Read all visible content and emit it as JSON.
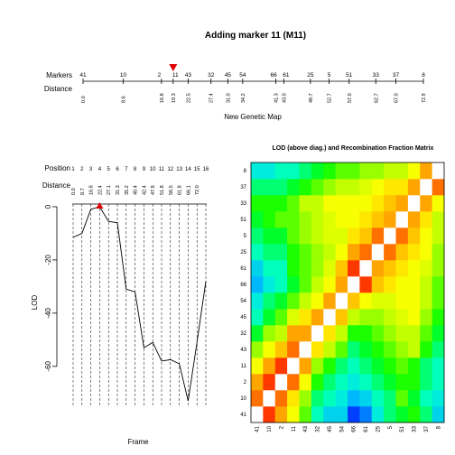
{
  "chart_data": [
    {
      "type": "line",
      "title": "Adding marker 11 (M11)",
      "row_labels": [
        "Markers",
        "Distance"
      ],
      "xlabel": "New Genetic Map",
      "markers": [
        {
          "name": "41",
          "cm": 0.0,
          "label": "0.0"
        },
        {
          "name": "10",
          "cm": 8.6,
          "label": "8.6"
        },
        {
          "name": "2",
          "cm": 16.8,
          "label": "16.8"
        },
        {
          "name": "11",
          "cm": 19.3,
          "label": "19.3"
        },
        {
          "name": "43",
          "cm": 22.5,
          "label": "22.5"
        },
        {
          "name": "32",
          "cm": 27.4,
          "label": "27.4"
        },
        {
          "name": "45",
          "cm": 31.0,
          "label": "31.0"
        },
        {
          "name": "54",
          "cm": 34.2,
          "label": "34.2"
        },
        {
          "name": "66",
          "cm": 41.3,
          "label": "41.3"
        },
        {
          "name": "61",
          "cm": 43.0,
          "label": "43.0"
        },
        {
          "name": "25",
          "cm": 48.7,
          "label": "48.7"
        },
        {
          "name": "5",
          "cm": 52.7,
          "label": "52.7"
        },
        {
          "name": "51",
          "cm": 57.0,
          "label": "57.0"
        },
        {
          "name": "33",
          "cm": 62.7,
          "label": "62.7"
        },
        {
          "name": "37",
          "cm": 67.0,
          "label": "67.0"
        },
        {
          "name": "8",
          "cm": 72.9,
          "label": "72.9"
        }
      ],
      "added_marker": "11",
      "highlight_color": "#e00000"
    },
    {
      "type": "line",
      "row_labels": [
        "Position",
        "Distance"
      ],
      "xlabel": "Frame",
      "ylabel": "LOD",
      "ylim": [
        -75,
        0
      ],
      "yticks": [
        0,
        -20,
        -40,
        -60
      ],
      "positions": [
        "1",
        "2",
        "3",
        "4",
        "5",
        "6",
        "7",
        "8",
        "9",
        "10",
        "11",
        "12",
        "13",
        "14",
        "15",
        "16"
      ],
      "distances": [
        "0.0",
        "8.7",
        "16.8",
        "22.4",
        "27.1",
        "31.3",
        "35.2",
        "40.4",
        "42.4",
        "47.8",
        "51.8",
        "56.5",
        "61.8",
        "66.1",
        "72.0",
        ""
      ],
      "lod_values": [
        -11.5,
        -10,
        -1,
        0,
        -5.5,
        -6,
        -31,
        -32,
        -53,
        -51,
        -58,
        -57.5,
        -59,
        -73,
        -51,
        -28
      ],
      "best_position": 4,
      "line_color": "#000000",
      "marker_color": "#e00000"
    },
    {
      "type": "heatmap",
      "title": "LOD (above diag.) and Recombination Fraction Matrix",
      "markers": [
        "41",
        "10",
        "2",
        "11",
        "43",
        "32",
        "45",
        "54",
        "66",
        "61",
        "25",
        "5",
        "51",
        "33",
        "37",
        "8"
      ],
      "diagonal_color": "#ffffff",
      "colorscale": [
        "#0000ff",
        "#00b4ff",
        "#00ffd0",
        "#00ff00",
        "#b4ff00",
        "#ffff00",
        "#ffa000",
        "#ff0000"
      ],
      "values": [
        [
          null,
          0.95,
          0.85,
          0.7,
          0.5,
          0.3,
          0.2,
          0.2,
          0.05,
          0.1,
          0.25,
          0.35,
          0.4,
          0.45,
          0.35,
          0.2
        ],
        [
          0.9,
          null,
          0.9,
          0.75,
          0.55,
          0.35,
          0.3,
          0.25,
          0.15,
          0.2,
          0.3,
          0.35,
          0.5,
          0.4,
          0.3,
          0.25
        ],
        [
          0.85,
          0.95,
          null,
          0.9,
          0.7,
          0.45,
          0.35,
          0.3,
          0.25,
          0.3,
          0.35,
          0.4,
          0.45,
          0.45,
          0.35,
          0.3
        ],
        [
          0.7,
          0.85,
          0.95,
          null,
          0.85,
          0.55,
          0.45,
          0.35,
          0.3,
          0.35,
          0.4,
          0.45,
          0.5,
          0.45,
          0.35,
          0.3
        ],
        [
          0.55,
          0.7,
          0.8,
          0.9,
          null,
          0.75,
          0.6,
          0.5,
          0.35,
          0.4,
          0.45,
          0.5,
          0.55,
          0.6,
          0.45,
          0.35
        ],
        [
          0.4,
          0.55,
          0.6,
          0.85,
          0.85,
          null,
          0.75,
          0.6,
          0.45,
          0.45,
          0.5,
          0.55,
          0.6,
          0.6,
          0.5,
          0.4
        ],
        [
          0.3,
          0.4,
          0.5,
          0.65,
          0.75,
          0.85,
          null,
          0.8,
          0.6,
          0.55,
          0.55,
          0.6,
          0.65,
          0.7,
          0.55,
          0.45
        ],
        [
          0.25,
          0.35,
          0.4,
          0.5,
          0.6,
          0.7,
          0.85,
          null,
          0.8,
          0.7,
          0.65,
          0.65,
          0.7,
          0.7,
          0.6,
          0.5
        ],
        [
          0.15,
          0.25,
          0.3,
          0.4,
          0.5,
          0.6,
          0.7,
          0.85,
          null,
          0.95,
          0.8,
          0.75,
          0.7,
          0.7,
          0.6,
          0.5
        ],
        [
          0.2,
          0.3,
          0.3,
          0.45,
          0.5,
          0.55,
          0.65,
          0.8,
          0.95,
          null,
          0.85,
          0.8,
          0.75,
          0.7,
          0.65,
          0.55
        ],
        [
          0.3,
          0.35,
          0.35,
          0.45,
          0.5,
          0.55,
          0.6,
          0.7,
          0.85,
          0.9,
          null,
          0.9,
          0.8,
          0.75,
          0.7,
          0.55
        ],
        [
          0.35,
          0.4,
          0.4,
          0.5,
          0.55,
          0.6,
          0.65,
          0.65,
          0.75,
          0.8,
          0.9,
          null,
          0.9,
          0.8,
          0.7,
          0.6
        ],
        [
          0.4,
          0.45,
          0.5,
          0.5,
          0.55,
          0.6,
          0.65,
          0.7,
          0.7,
          0.75,
          0.8,
          0.85,
          null,
          0.85,
          0.75,
          0.6
        ],
        [
          0.45,
          0.45,
          0.45,
          0.5,
          0.6,
          0.6,
          0.7,
          0.7,
          0.7,
          0.7,
          0.75,
          0.8,
          0.85,
          null,
          0.85,
          0.7
        ],
        [
          0.35,
          0.35,
          0.35,
          0.4,
          0.45,
          0.5,
          0.55,
          0.6,
          0.6,
          0.65,
          0.7,
          0.75,
          0.75,
          0.85,
          null,
          0.9
        ],
        [
          0.25,
          0.25,
          0.3,
          0.3,
          0.35,
          0.4,
          0.45,
          0.5,
          0.5,
          0.55,
          0.55,
          0.6,
          0.6,
          0.7,
          0.85,
          null
        ]
      ]
    }
  ]
}
